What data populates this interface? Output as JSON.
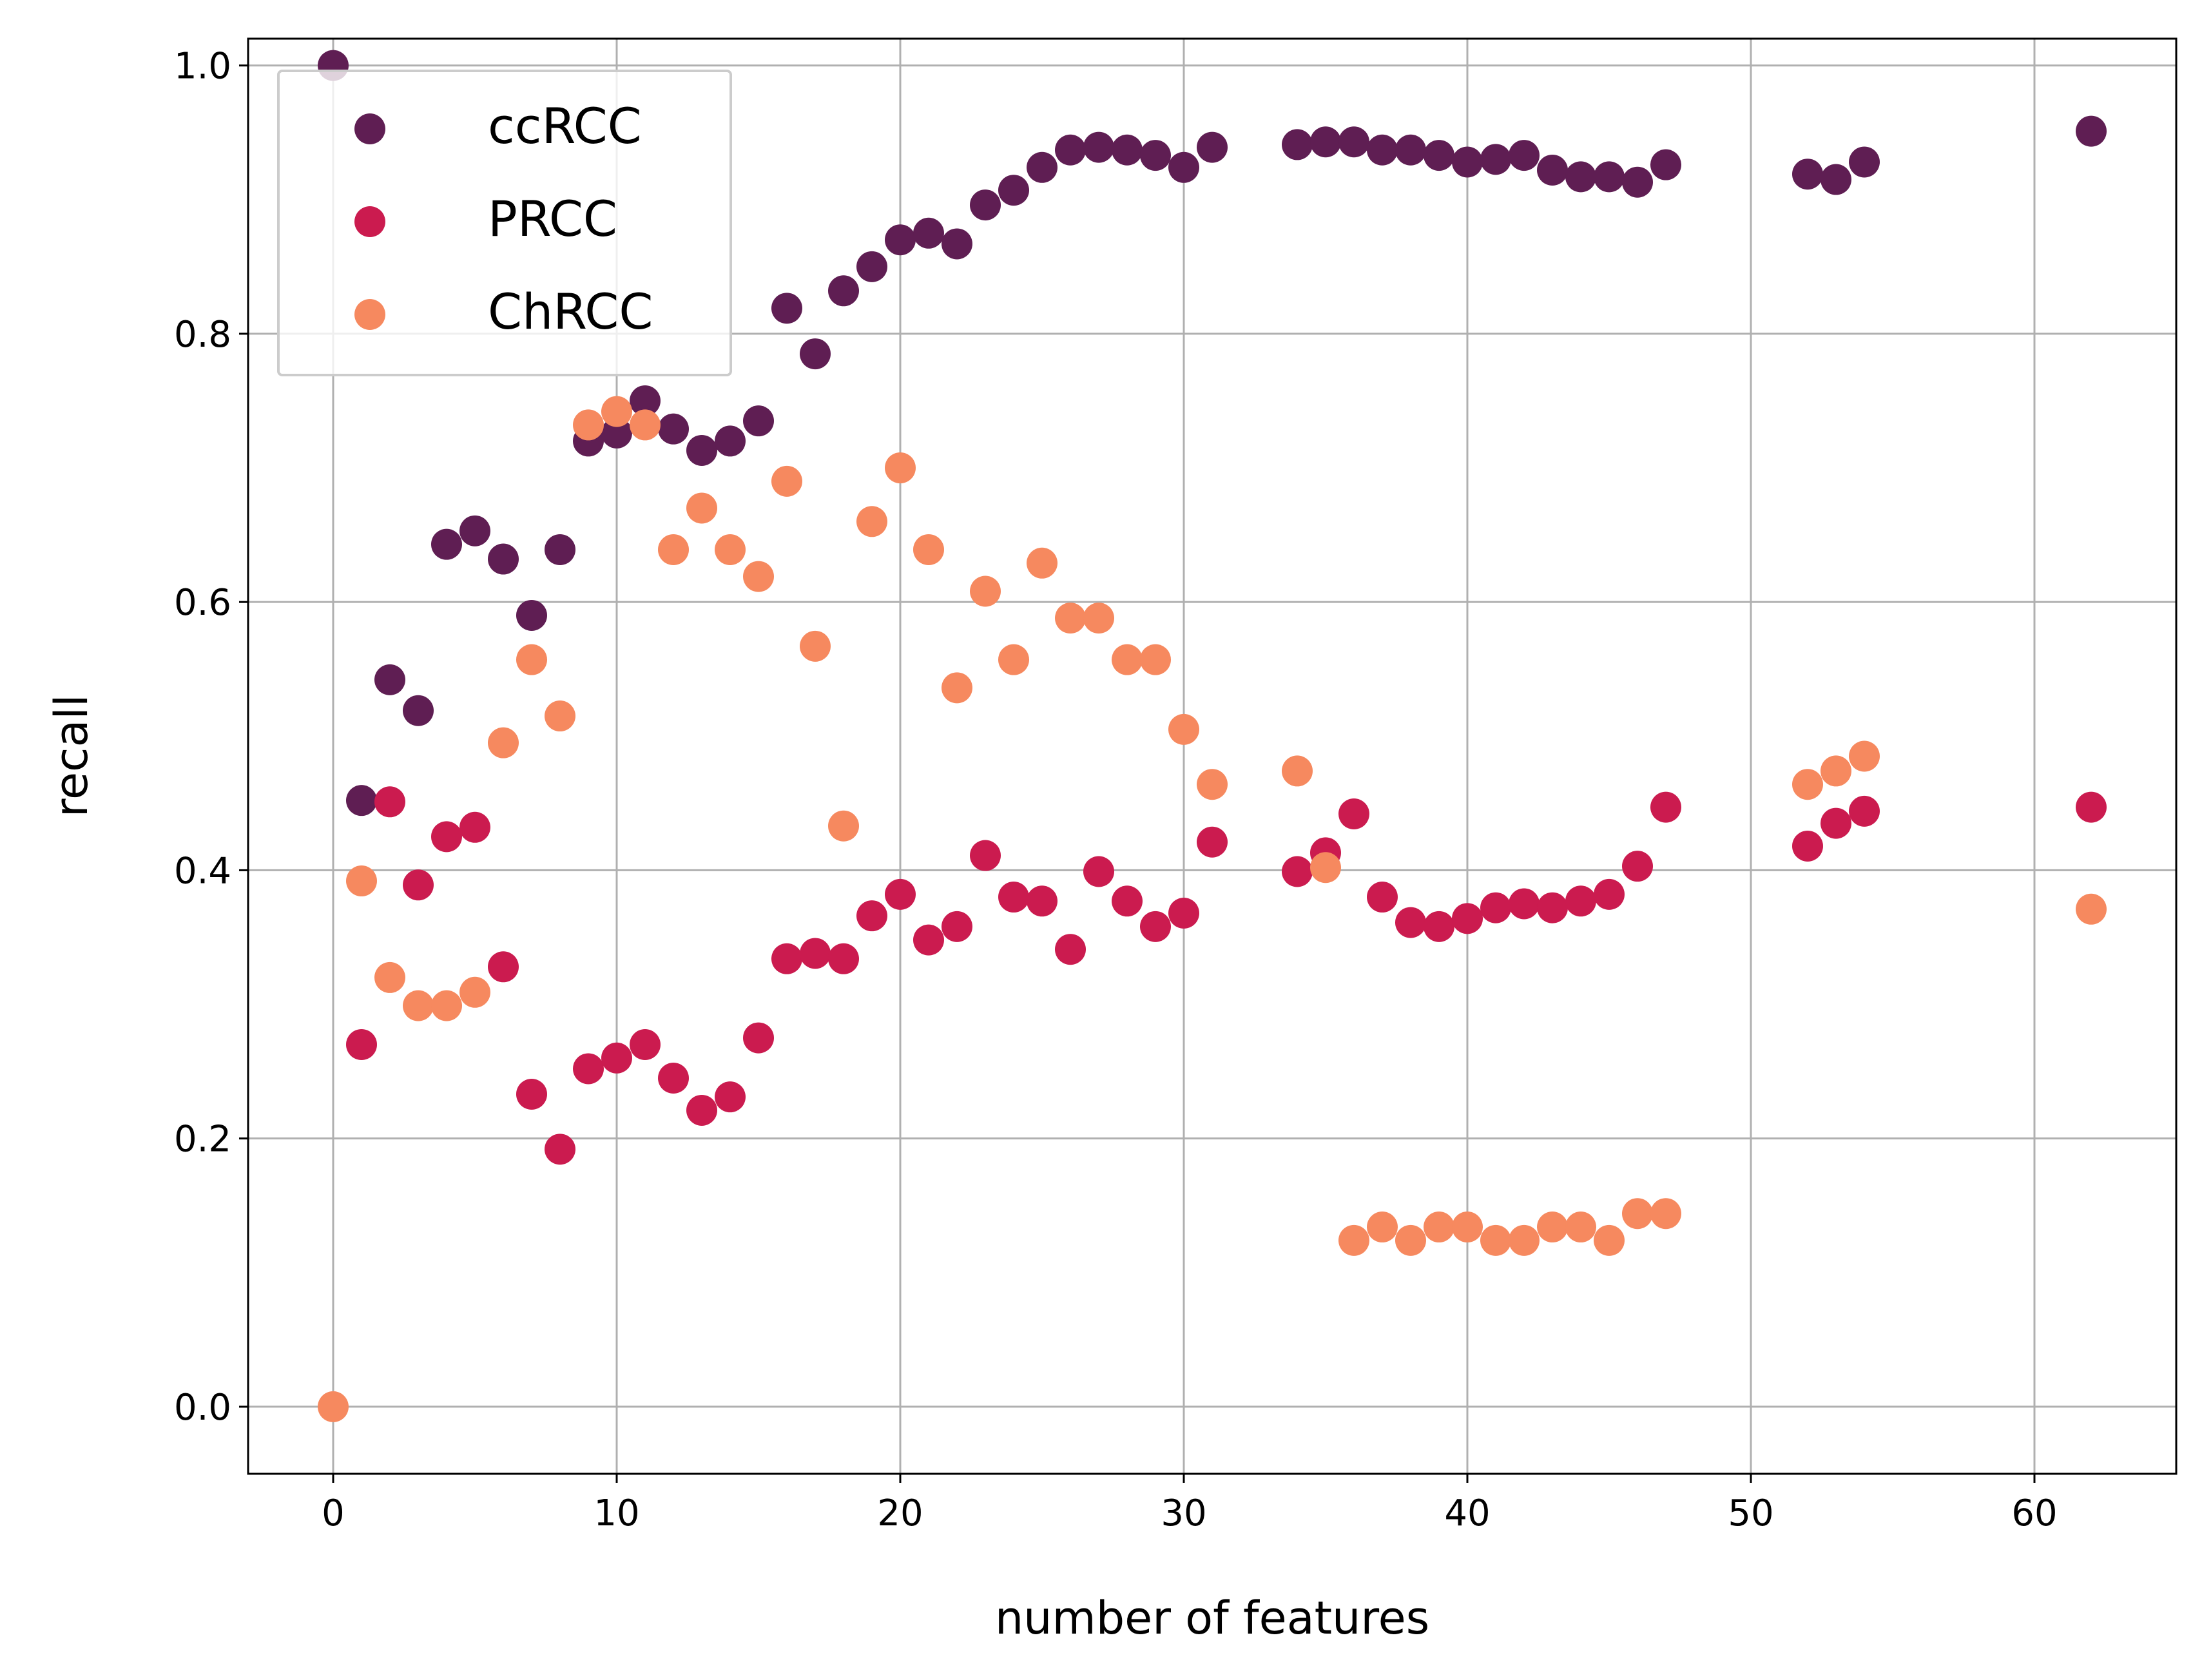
{
  "chart_data": {
    "type": "scatter",
    "xlabel": "number of features",
    "ylabel": "recall",
    "xlim": [
      -3,
      65
    ],
    "ylim": [
      -0.05,
      1.02
    ],
    "xticks": [
      0,
      10,
      20,
      30,
      40,
      50,
      60
    ],
    "xtick_labels": [
      "0",
      "10",
      "20",
      "30",
      "40",
      "50",
      "60"
    ],
    "yticks": [
      0.0,
      0.2,
      0.4,
      0.6,
      0.8,
      1.0
    ],
    "ytick_labels": [
      "0.0",
      "0.2",
      "0.4",
      "0.6",
      "0.8",
      "1.0"
    ],
    "grid": true,
    "legend_position": "top-left",
    "series": [
      {
        "name": "ccRCC",
        "color": "#5f1e53",
        "x": [
          0,
          1,
          2,
          3,
          4,
          5,
          6,
          7,
          8,
          9,
          10,
          11,
          12,
          13,
          14,
          15,
          16,
          17,
          18,
          19,
          20,
          21,
          22,
          23,
          24,
          25,
          26,
          27,
          28,
          29,
          30,
          31,
          34,
          35,
          36,
          37,
          38,
          39,
          40,
          41,
          42,
          43,
          44,
          45,
          46,
          47,
          52,
          53,
          54,
          62
        ],
        "y": [
          1.0,
          0.452,
          0.542,
          0.519,
          0.643,
          0.653,
          0.632,
          0.59,
          0.639,
          0.72,
          0.726,
          0.75,
          0.729,
          0.713,
          0.72,
          0.735,
          0.819,
          0.785,
          0.832,
          0.85,
          0.87,
          0.875,
          0.867,
          0.896,
          0.907,
          0.924,
          0.937,
          0.939,
          0.937,
          0.933,
          0.924,
          0.939,
          0.941,
          0.943,
          0.943,
          0.937,
          0.937,
          0.933,
          0.928,
          0.93,
          0.933,
          0.922,
          0.917,
          0.917,
          0.913,
          0.926,
          0.919,
          0.915,
          0.928,
          0.951
        ]
      },
      {
        "name": "PRCC",
        "color": "#cb1b4f",
        "x": [
          1,
          2,
          3,
          4,
          5,
          6,
          7,
          8,
          9,
          10,
          11,
          12,
          13,
          14,
          15,
          16,
          17,
          18,
          19,
          20,
          21,
          22,
          23,
          24,
          25,
          26,
          27,
          28,
          29,
          30,
          31,
          34,
          35,
          36,
          37,
          38,
          39,
          40,
          41,
          42,
          43,
          44,
          45,
          46,
          47,
          52,
          53,
          54,
          62
        ],
        "y": [
          0.27,
          0.451,
          0.389,
          0.425,
          0.432,
          0.328,
          0.233,
          0.192,
          0.252,
          0.26,
          0.27,
          0.245,
          0.221,
          0.231,
          0.275,
          0.334,
          0.338,
          0.334,
          0.366,
          0.382,
          0.348,
          0.358,
          0.411,
          0.38,
          0.377,
          0.341,
          0.399,
          0.377,
          0.358,
          0.368,
          0.421,
          0.399,
          0.413,
          0.442,
          0.38,
          0.361,
          0.358,
          0.364,
          0.372,
          0.375,
          0.372,
          0.377,
          0.382,
          0.403,
          0.447,
          0.418,
          0.435,
          0.444,
          0.447
        ]
      },
      {
        "name": "ChRCC",
        "color": "#f6895f",
        "x": [
          0,
          1,
          2,
          3,
          4,
          5,
          6,
          7,
          8,
          9,
          10,
          11,
          12,
          13,
          14,
          15,
          16,
          17,
          18,
          19,
          20,
          21,
          22,
          23,
          24,
          25,
          26,
          27,
          28,
          29,
          30,
          31,
          34,
          35,
          36,
          37,
          38,
          39,
          40,
          41,
          42,
          43,
          44,
          45,
          46,
          47,
          52,
          53,
          54,
          62
        ],
        "y": [
          0.0,
          0.392,
          0.32,
          0.299,
          0.299,
          0.309,
          0.495,
          0.557,
          0.515,
          0.732,
          0.742,
          0.732,
          0.639,
          0.67,
          0.639,
          0.619,
          0.69,
          0.567,
          0.433,
          0.66,
          0.7,
          0.639,
          0.536,
          0.608,
          0.557,
          0.629,
          0.588,
          0.588,
          0.557,
          0.557,
          0.505,
          0.464,
          0.474,
          0.402,
          0.124,
          0.134,
          0.124,
          0.134,
          0.134,
          0.124,
          0.124,
          0.134,
          0.134,
          0.124,
          0.144,
          0.144,
          0.464,
          0.474,
          0.485,
          0.371
        ]
      }
    ]
  }
}
